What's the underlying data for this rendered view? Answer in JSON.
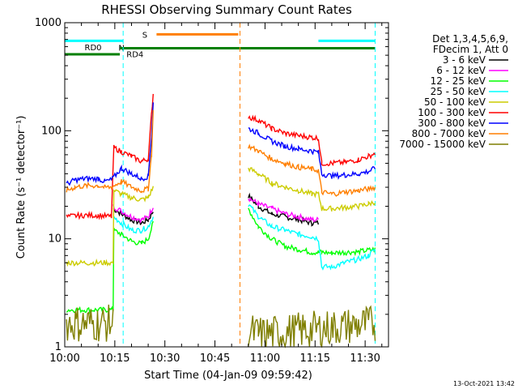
{
  "chart_data": {
    "type": "line",
    "title": "RHESSI Observing Summary Count Rates",
    "xlabel": "Start Time (04-Jan-09 09:59:42)",
    "ylabel": "Count Rate (s⁻¹ detector⁻¹)",
    "yscale": "log",
    "ylim": [
      1,
      1000
    ],
    "xlim_minutes": [
      0,
      97
    ],
    "x_ticks": [
      {
        "m": 0,
        "label": "10:00"
      },
      {
        "m": 15,
        "label": "10:15"
      },
      {
        "m": 30,
        "label": "10:30"
      },
      {
        "m": 45,
        "label": "10:45"
      },
      {
        "m": 60,
        "label": "11:00"
      },
      {
        "m": 75,
        "label": "11:15"
      },
      {
        "m": 90,
        "label": "11:30"
      }
    ],
    "y_ticks": [
      {
        "v": 1,
        "label": "1"
      },
      {
        "v": 10,
        "label": "10"
      },
      {
        "v": 100,
        "label": "100"
      },
      {
        "v": 1000,
        "label": "1000"
      }
    ],
    "legend_header": [
      "Det 1,3,4,5,6,9,",
      "FDecim 1, Att 0"
    ],
    "legend_position": "right",
    "timestamp": "13-Oct-2021 13:42",
    "flags": [
      {
        "label": "N",
        "color": "#00ffff",
        "segments": [
          [
            0,
            17.5
          ],
          [
            76,
            93
          ]
        ],
        "level": 680
      },
      {
        "label": "S",
        "color": "#ff7f00",
        "segments": [
          [
            27.5,
            52
          ]
        ],
        "level": 780
      },
      {
        "label": "RD0",
        "color": "#007f00",
        "segments": [
          [
            0,
            16.5
          ]
        ],
        "level": 510
      },
      {
        "label": "RD4",
        "color": "#007f00",
        "segments": [
          [
            16.5,
            93
          ]
        ],
        "level": 580
      }
    ],
    "vlines": [
      {
        "m": 17.5,
        "color": "#00ffff"
      },
      {
        "m": 52.5,
        "color": "#ff7f00"
      },
      {
        "m": 93,
        "color": "#00ffff"
      }
    ],
    "gaps": [
      [
        0,
        0.5
      ],
      [
        26.5,
        54.5
      ],
      [
        93.5,
        97
      ]
    ],
    "series": [
      {
        "name": "3 - 6 keV",
        "color": "#000000",
        "points": [
          [
            14.5,
            19
          ],
          [
            17,
            17
          ],
          [
            20,
            15
          ],
          [
            23,
            14
          ],
          [
            25,
            15
          ],
          [
            26.5,
            18
          ],
          [
            55,
            25
          ],
          [
            58,
            20
          ],
          [
            62,
            17
          ],
          [
            66,
            16
          ],
          [
            70,
            15
          ],
          [
            74,
            14
          ],
          [
            76,
            14
          ]
        ]
      },
      {
        "name": "6 - 12 keV",
        "color": "#ff00ff",
        "points": [
          [
            14.5,
            20
          ],
          [
            17,
            18
          ],
          [
            20,
            16
          ],
          [
            23,
            15
          ],
          [
            25,
            16
          ],
          [
            26.5,
            20
          ],
          [
            55,
            24
          ],
          [
            58,
            21
          ],
          [
            62,
            19
          ],
          [
            66,
            17
          ],
          [
            70,
            16
          ],
          [
            74,
            15
          ],
          [
            76,
            15
          ]
        ]
      },
      {
        "name": "12 - 25 keV",
        "color": "#00ff00",
        "points": [
          [
            0.5,
            2.2
          ],
          [
            14.5,
            2.2
          ],
          [
            14.7,
            12
          ],
          [
            17,
            11
          ],
          [
            20,
            9.5
          ],
          [
            23,
            9
          ],
          [
            25,
            10
          ],
          [
            26.5,
            14
          ],
          [
            55,
            19
          ],
          [
            58,
            13
          ],
          [
            62,
            10
          ],
          [
            66,
            8.5
          ],
          [
            70,
            8
          ],
          [
            74,
            7.5
          ],
          [
            76,
            7.5
          ],
          [
            77,
            7.5
          ],
          [
            80,
            7.4
          ],
          [
            84,
            7.5
          ],
          [
            88,
            7.6
          ],
          [
            93,
            8
          ]
        ]
      },
      {
        "name": "25 - 50 keV",
        "color": "#00ffff",
        "points": [
          [
            14.5,
            16
          ],
          [
            17,
            14
          ],
          [
            20,
            12
          ],
          [
            23,
            12
          ],
          [
            25,
            13
          ],
          [
            26.5,
            16
          ],
          [
            55,
            21
          ],
          [
            58,
            16
          ],
          [
            62,
            13
          ],
          [
            66,
            12
          ],
          [
            70,
            11
          ],
          [
            74,
            10.5
          ],
          [
            76,
            10
          ],
          [
            77,
            5.5
          ],
          [
            80,
            5.5
          ],
          [
            84,
            6
          ],
          [
            88,
            6.5
          ],
          [
            91,
            7
          ],
          [
            93,
            8
          ]
        ]
      },
      {
        "name": "50 - 100 keV",
        "color": "#cccc00",
        "points": [
          [
            0.5,
            6
          ],
          [
            14.5,
            6
          ],
          [
            14.7,
            28
          ],
          [
            17,
            26
          ],
          [
            20,
            24
          ],
          [
            23,
            23
          ],
          [
            25,
            24
          ],
          [
            26.5,
            30
          ],
          [
            55,
            45
          ],
          [
            58,
            40
          ],
          [
            62,
            33
          ],
          [
            66,
            30
          ],
          [
            70,
            28
          ],
          [
            74,
            26
          ],
          [
            76,
            26
          ],
          [
            77,
            19
          ],
          [
            80,
            19
          ],
          [
            84,
            19.5
          ],
          [
            88,
            20
          ],
          [
            91,
            21
          ],
          [
            93,
            22
          ]
        ]
      },
      {
        "name": "100 - 300 keV",
        "color": "#ff0000",
        "points": [
          [
            0.5,
            16
          ],
          [
            5,
            16.5
          ],
          [
            10,
            16.5
          ],
          [
            14,
            16
          ],
          [
            14.7,
            70
          ],
          [
            17,
            64
          ],
          [
            20,
            58
          ],
          [
            23,
            52
          ],
          [
            25,
            55
          ],
          [
            26,
            140
          ],
          [
            26.5,
            220
          ],
          [
            55,
            135
          ],
          [
            58,
            125
          ],
          [
            62,
            105
          ],
          [
            66,
            95
          ],
          [
            70,
            90
          ],
          [
            74,
            87
          ],
          [
            76,
            85
          ],
          [
            77,
            50
          ],
          [
            80,
            50
          ],
          [
            84,
            51
          ],
          [
            88,
            54
          ],
          [
            91,
            58
          ],
          [
            93,
            62
          ]
        ]
      },
      {
        "name": "300 - 800 keV",
        "color": "#0000ff",
        "points": [
          [
            0.5,
            32
          ],
          [
            3,
            35
          ],
          [
            6,
            36
          ],
          [
            10,
            36
          ],
          [
            12,
            34
          ],
          [
            14,
            35
          ],
          [
            17,
            45
          ],
          [
            20,
            40
          ],
          [
            23,
            36
          ],
          [
            25,
            38
          ],
          [
            26,
            90
          ],
          [
            26.5,
            180
          ],
          [
            55,
            105
          ],
          [
            58,
            95
          ],
          [
            62,
            80
          ],
          [
            66,
            72
          ],
          [
            70,
            68
          ],
          [
            74,
            65
          ],
          [
            76,
            63
          ],
          [
            77,
            40
          ],
          [
            80,
            38
          ],
          [
            84,
            39
          ],
          [
            88,
            40
          ],
          [
            91,
            42
          ],
          [
            93,
            45
          ]
        ]
      },
      {
        "name": "800 - 7000 keV",
        "color": "#ff7f00",
        "points": [
          [
            0.5,
            28
          ],
          [
            3,
            30
          ],
          [
            6,
            31
          ],
          [
            10,
            31
          ],
          [
            12,
            30
          ],
          [
            14,
            30
          ],
          [
            17,
            34
          ],
          [
            20,
            30
          ],
          [
            23,
            28
          ],
          [
            25,
            29
          ],
          [
            26,
            60
          ],
          [
            26.5,
            150
          ],
          [
            55,
            72
          ],
          [
            58,
            65
          ],
          [
            62,
            55
          ],
          [
            66,
            50
          ],
          [
            70,
            46
          ],
          [
            74,
            44
          ],
          [
            76,
            43
          ],
          [
            77,
            27
          ],
          [
            80,
            26
          ],
          [
            84,
            27
          ],
          [
            88,
            28
          ],
          [
            91,
            29
          ],
          [
            93,
            30
          ]
        ]
      },
      {
        "name": "7000 - 15000 keV",
        "color": "#7f7f00",
        "points": [
          [
            0.5,
            1.4
          ],
          [
            14.5,
            1.4
          ],
          [
            55,
            1.2
          ],
          [
            58,
            1.1
          ],
          [
            93,
            1.4
          ]
        ]
      }
    ]
  }
}
